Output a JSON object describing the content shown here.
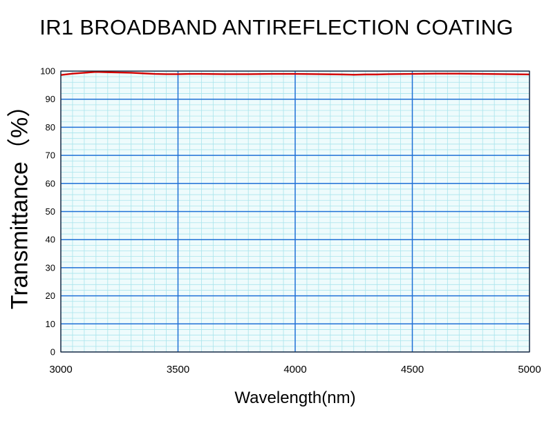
{
  "chart_data": {
    "type": "line",
    "title": "IR1 BROADBAND ANTIREFLECTION COATING",
    "xlabel": "Wavelength(nm)",
    "ylabel": "Transmittance（%）",
    "xlim": [
      3000,
      5000
    ],
    "ylim": [
      0,
      100
    ],
    "x_ticks": [
      3000,
      3500,
      4000,
      4500,
      5000
    ],
    "y_ticks": [
      0,
      10,
      20,
      30,
      40,
      50,
      60,
      70,
      80,
      90,
      100
    ],
    "grid": true,
    "colors": {
      "line": "#d40000",
      "major_grid": "#1e6fd6",
      "minor_grid": "#a8e4ec",
      "background": "#eefbfc"
    },
    "series": [
      {
        "x": [
          3000,
          3050,
          3100,
          3150,
          3200,
          3250,
          3300,
          3350,
          3400,
          3450,
          3500,
          3550,
          3600,
          3700,
          3800,
          3900,
          4000,
          4100,
          4200,
          4250,
          4300,
          4350,
          4400,
          4500,
          4600,
          4700,
          4800,
          4900,
          5000
        ],
        "y": [
          98.6,
          99.1,
          99.4,
          99.7,
          99.6,
          99.5,
          99.4,
          99.2,
          99.0,
          98.9,
          98.9,
          99.0,
          99.0,
          98.9,
          98.9,
          99.0,
          99.0,
          98.9,
          98.8,
          98.7,
          98.8,
          98.8,
          98.9,
          99.0,
          99.1,
          99.1,
          99.0,
          98.9,
          98.8
        ]
      }
    ]
  }
}
